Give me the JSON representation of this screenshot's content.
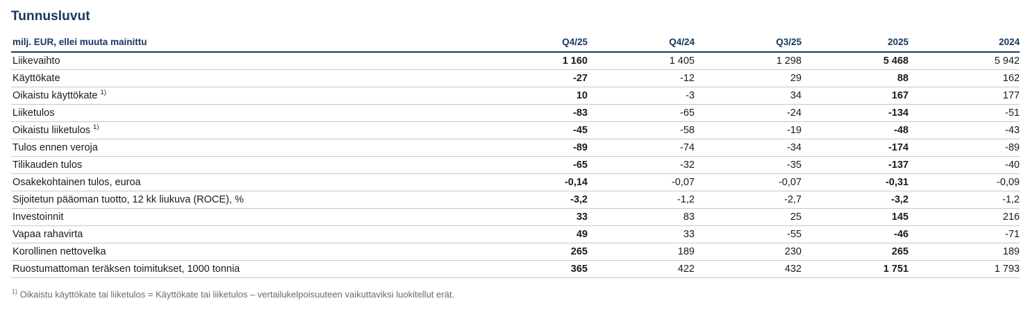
{
  "page": {
    "title": "Tunnusluvut",
    "unit_label": "milj. EUR, ellei muuta mainittu",
    "footnote_marker": "1)",
    "footnote_text": "Oikaistu käyttökate tai liiketulos = Käyttökate tai liiketulos – vertailukelpoisuuteen vaikuttaviksi luokitellut erät."
  },
  "colors": {
    "heading_navy": "#17365d",
    "body_text": "#1a1a1a",
    "row_separator": "#c8c8c8",
    "footnote_gray": "#6a6a6a"
  },
  "chart_data": {
    "type": "table",
    "title": "Tunnusluvut",
    "unit": "milj. EUR, ellei muuta mainittu",
    "columns": [
      "Q4/25",
      "Q4/24",
      "Q3/25",
      "2025",
      "2024"
    ],
    "bold_column_indexes": [
      0,
      3
    ],
    "rows": [
      {
        "label": "Liikevaihto",
        "footnote": false,
        "values": [
          "1 160",
          "1 405",
          "1 298",
          "5 468",
          "5 942"
        ]
      },
      {
        "label": "Käyttökate",
        "footnote": false,
        "values": [
          "-27",
          "-12",
          "29",
          "88",
          "162"
        ]
      },
      {
        "label": "Oikaistu käyttökate",
        "footnote": true,
        "values": [
          "10",
          "-3",
          "34",
          "167",
          "177"
        ]
      },
      {
        "label": "Liiketulos",
        "footnote": false,
        "values": [
          "-83",
          "-65",
          "-24",
          "-134",
          "-51"
        ]
      },
      {
        "label": "Oikaistu liiketulos",
        "footnote": true,
        "values": [
          "-45",
          "-58",
          "-19",
          "-48",
          "-43"
        ]
      },
      {
        "label": "Tulos ennen veroja",
        "footnote": false,
        "values": [
          "-89",
          "-74",
          "-34",
          "-174",
          "-89"
        ]
      },
      {
        "label": "Tilikauden tulos",
        "footnote": false,
        "values": [
          "-65",
          "-32",
          "-35",
          "-137",
          "-40"
        ]
      },
      {
        "label": "Osakekohtainen tulos, euroa",
        "footnote": false,
        "values": [
          "-0,14",
          "-0,07",
          "-0,07",
          "-0,31",
          "-0,09"
        ]
      },
      {
        "label": "Sijoitetun pääoman tuotto, 12 kk liukuva (ROCE), %",
        "footnote": false,
        "values": [
          "-3,2",
          "-1,2",
          "-2,7",
          "-3,2",
          "-1,2"
        ]
      },
      {
        "label": "Investoinnit",
        "footnote": false,
        "values": [
          "33",
          "83",
          "25",
          "145",
          "216"
        ]
      },
      {
        "label": "Vapaa rahavirta",
        "footnote": false,
        "values": [
          "49",
          "33",
          "-55",
          "-46",
          "-71"
        ]
      },
      {
        "label": "Korollinen nettovelka",
        "footnote": false,
        "values": [
          "265",
          "189",
          "230",
          "265",
          "189"
        ]
      },
      {
        "label": "Ruostumattoman teräksen toimitukset, 1000 tonnia",
        "footnote": false,
        "values": [
          "365",
          "422",
          "432",
          "1 751",
          "1 793"
        ]
      }
    ]
  }
}
